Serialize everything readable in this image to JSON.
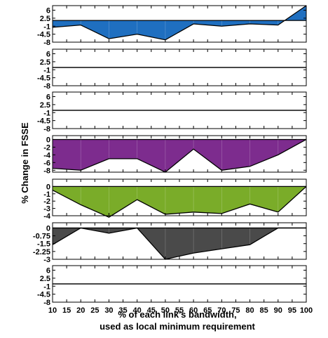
{
  "chart_data": {
    "type": "area",
    "xlabel_line1": "% of each link's bandwidth,",
    "xlabel_line2": "used as local minimum requirement",
    "ylabel": "% Change in FSSE",
    "x": [
      10,
      20,
      30,
      40,
      50,
      60,
      70,
      80,
      90,
      100
    ],
    "x_ticks": [
      "10",
      "15",
      "20",
      "25",
      "30",
      "35",
      "40",
      "45",
      "50",
      "55",
      "60",
      "65",
      "70",
      "75",
      "80",
      "85",
      "90",
      "95",
      "100"
    ],
    "xlim": [
      10,
      100
    ],
    "panels": [
      {
        "id": "p1",
        "color": "#1f6fc0",
        "baseline": 1.5,
        "ylim": [
          -8,
          8
        ],
        "yticks": [
          6,
          2.5,
          -1,
          -4.5,
          -8
        ],
        "ytick_labels": [
          "6",
          "2.5",
          "-1",
          "-4.5",
          "-8"
        ],
        "values": [
          -1.5,
          -0.5,
          -6.5,
          -4.5,
          -7,
          0,
          -1,
          0,
          -0.5,
          8
        ]
      },
      {
        "id": "p2",
        "color": "#000000",
        "baseline": 0,
        "ylim": [
          -8,
          8
        ],
        "yticks": [
          6,
          2.5,
          -1,
          -4.5,
          -8
        ],
        "ytick_labels": [
          "6",
          "2.5",
          "-1",
          "-4.5",
          "-8"
        ],
        "values": [
          0,
          0,
          0,
          0,
          0,
          0,
          0,
          0,
          0,
          0
        ]
      },
      {
        "id": "p3",
        "color": "#000000",
        "baseline": 0,
        "ylim": [
          -8,
          8
        ],
        "yticks": [
          6,
          2.5,
          -1,
          -4.5,
          -8
        ],
        "ytick_labels": [
          "6",
          "2.5",
          "-1",
          "-4.5",
          "-8"
        ],
        "values": [
          0,
          0,
          0,
          0,
          0,
          0,
          0,
          0,
          0,
          0
        ]
      },
      {
        "id": "p4",
        "color": "#7d2c8e",
        "baseline": 0,
        "ylim": [
          -8.5,
          1
        ],
        "yticks": [
          0,
          -2,
          -4,
          -6,
          -8
        ],
        "ytick_labels": [
          "0",
          "-2",
          "-4",
          "-6",
          "-8"
        ],
        "values": [
          -7.5,
          -8,
          -5,
          -5,
          -8.5,
          -2.5,
          -8,
          -7,
          -4,
          0
        ]
      },
      {
        "id": "p5",
        "color": "#7aac29",
        "baseline": 0,
        "ylim": [
          -4,
          1
        ],
        "yticks": [
          0,
          -1,
          -2,
          -3,
          -4
        ],
        "ytick_labels": [
          "0",
          "-1",
          "-2",
          "-3",
          "-4"
        ],
        "values": [
          -0.5,
          -2.5,
          -4.2,
          -1.8,
          -3.8,
          -3.5,
          -3.7,
          -2.4,
          -3.5,
          0
        ]
      },
      {
        "id": "p6",
        "color": "#4a4a4a",
        "baseline": 0,
        "ylim": [
          -3,
          0.5
        ],
        "yticks": [
          0,
          -0.75,
          -1.5,
          -2.25,
          -3
        ],
        "ytick_labels": [
          "0",
          "-0.75",
          "-1.5",
          "-2.25",
          "-3"
        ],
        "values": [
          -1.6,
          0,
          -0.5,
          0,
          -3.0,
          -2.4,
          -2.0,
          -1.6,
          0,
          0
        ]
      },
      {
        "id": "p7",
        "color": "#000000",
        "baseline": 0,
        "ylim": [
          -8,
          8
        ],
        "yticks": [
          6,
          2.5,
          -1,
          -4.5,
          -8
        ],
        "ytick_labels": [
          "6",
          "2.5",
          "-1",
          "-4.5",
          "-8"
        ],
        "values": [
          0,
          0,
          0,
          0,
          0,
          0,
          0,
          0,
          0,
          0
        ]
      }
    ]
  }
}
